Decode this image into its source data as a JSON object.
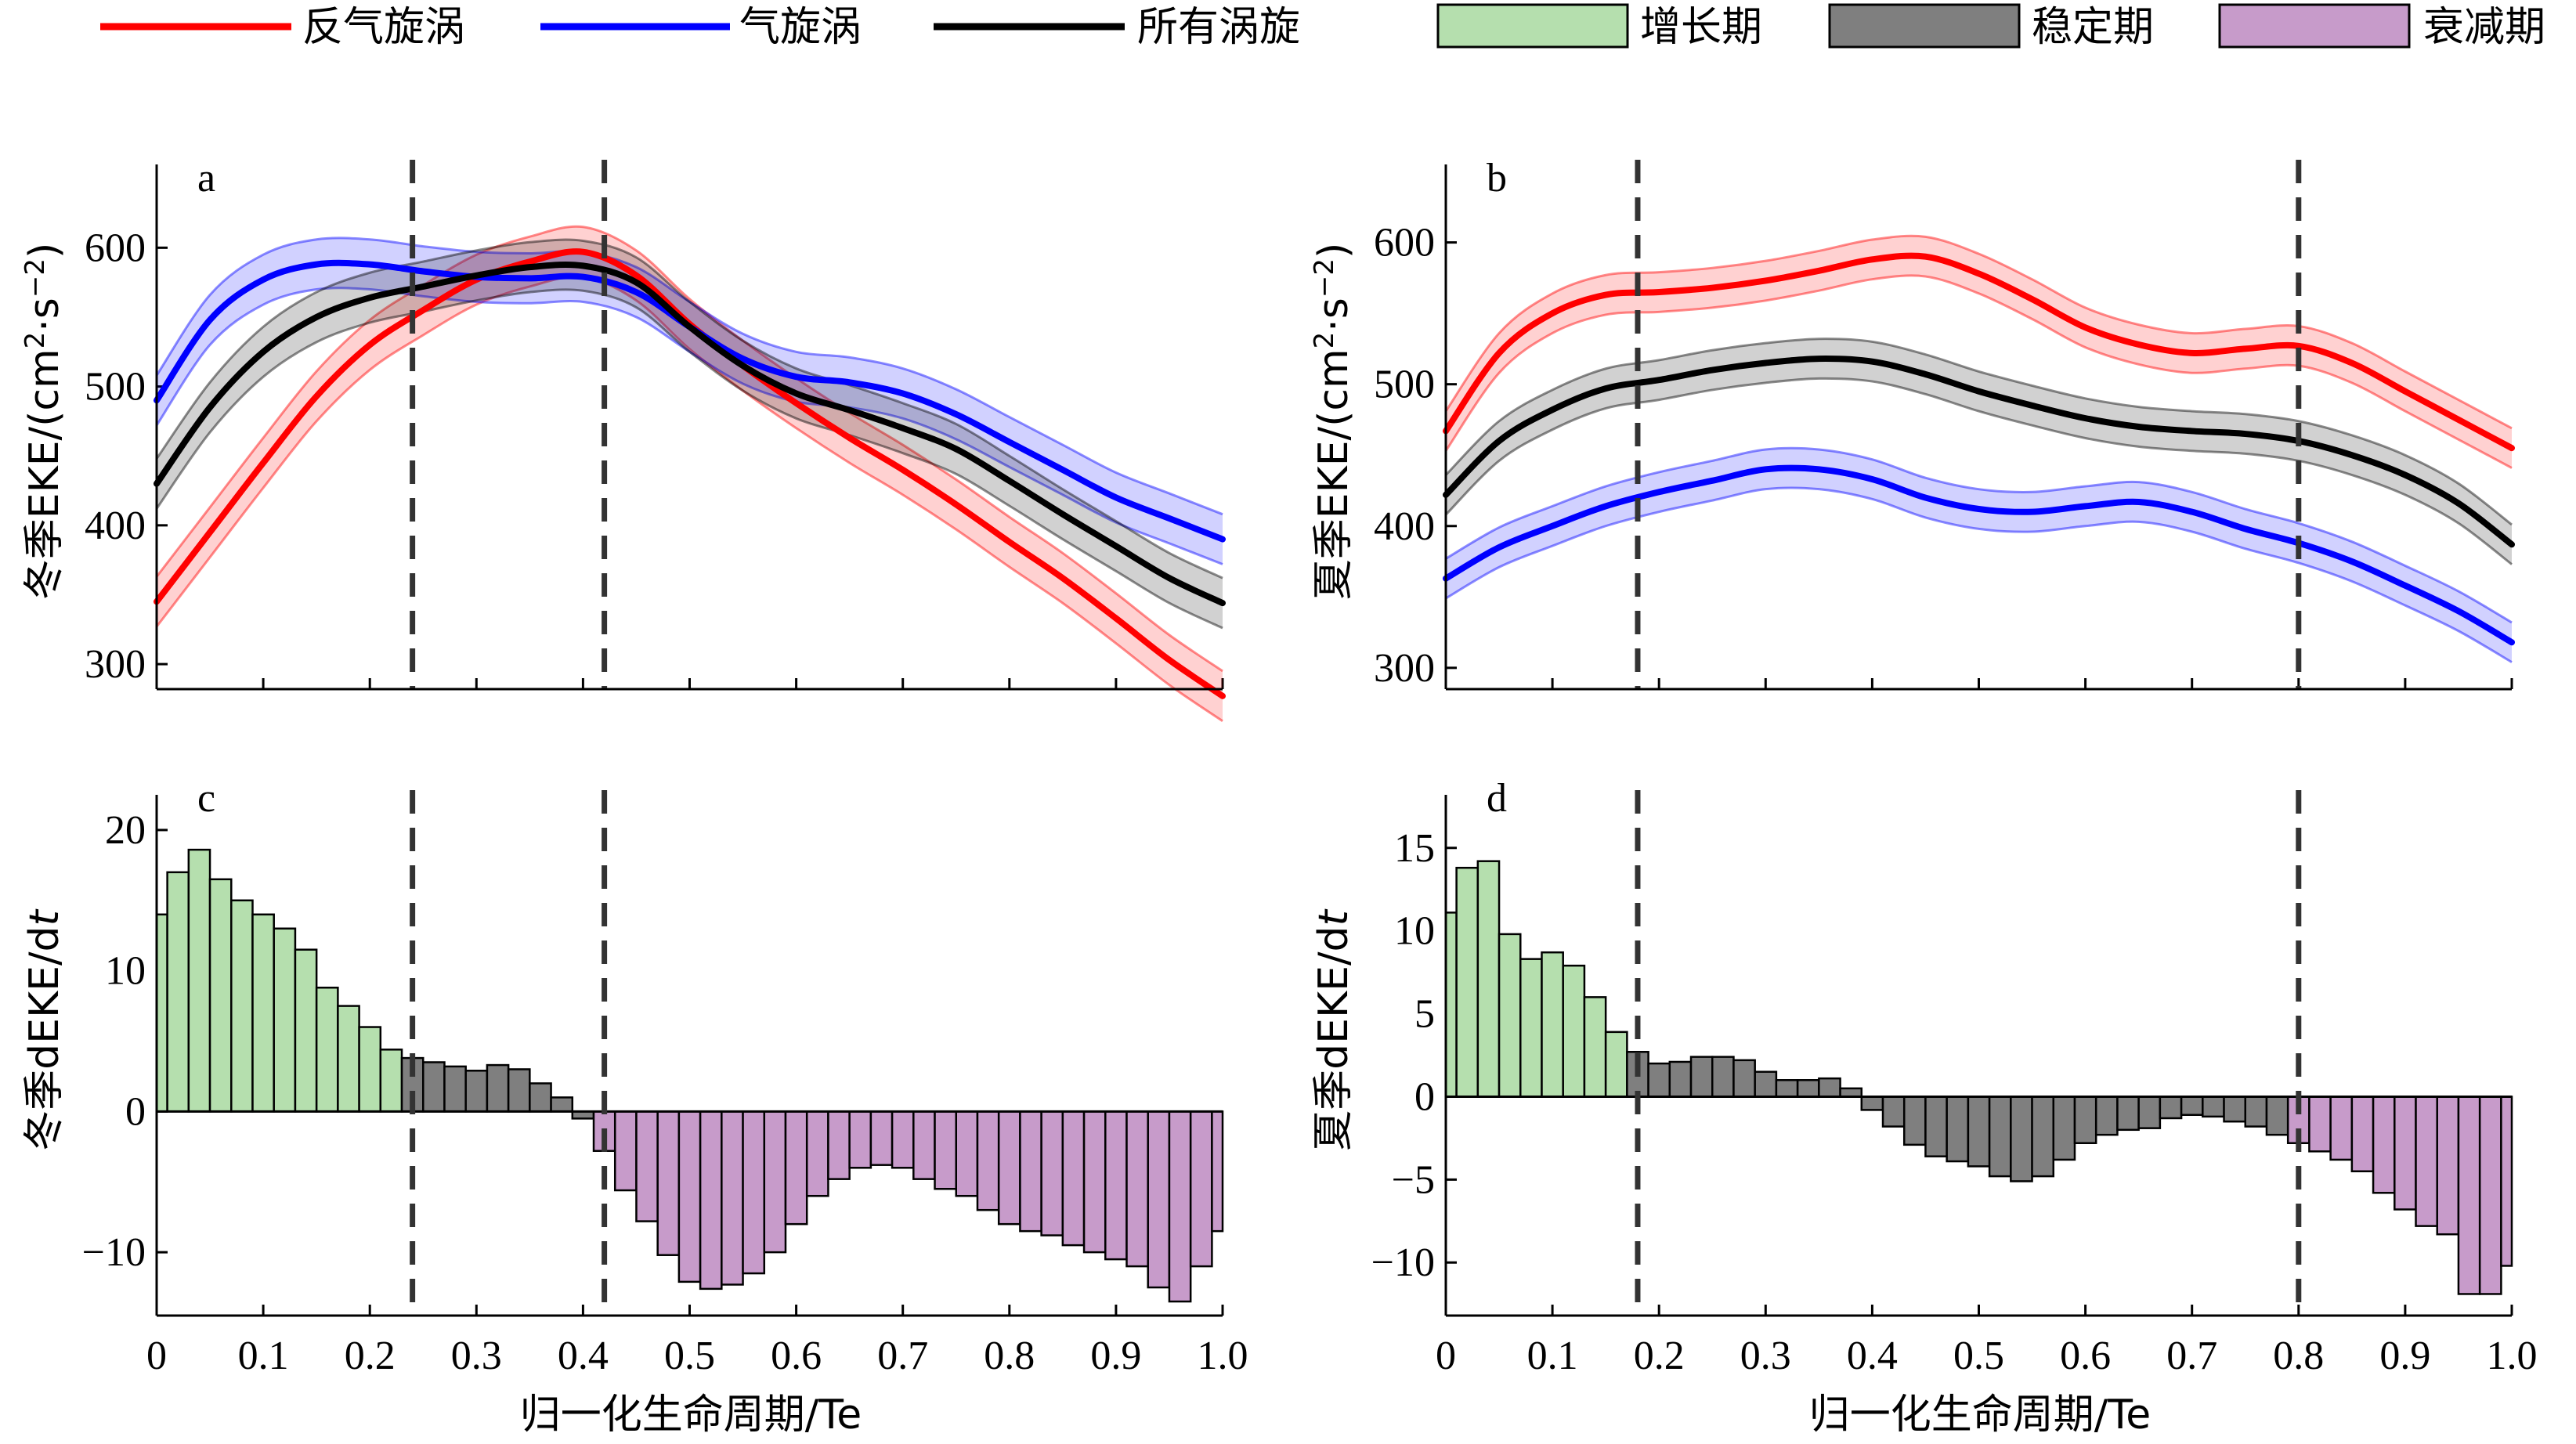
{
  "legend": {
    "lines": [
      {
        "label": "反气旋涡",
        "color": "#ff0000"
      },
      {
        "label": "气旋涡",
        "color": "#0000ff"
      },
      {
        "label": "所有涡旋",
        "color": "#000000"
      }
    ],
    "patches": [
      {
        "label": "增长期",
        "color": "#b5dfae"
      },
      {
        "label": "稳定期",
        "color": "#7f7f7f"
      },
      {
        "label": "衰减期",
        "color": "#c79bca"
      }
    ]
  },
  "chart_data": [
    {
      "id": "a",
      "panel_label": "a",
      "type": "line",
      "ylabel_season": "冬季",
      "ylabel_main": "EKE/(cm",
      "ylabel_sup1": "2",
      "ylabel_mid": "·s",
      "ylabel_sup2": "−2",
      "ylabel_end": ")",
      "xlim": [
        0,
        1
      ],
      "ylim": [
        282,
        660
      ],
      "yticks": [
        300,
        400,
        500,
        600
      ],
      "ytick_labels": [
        "300",
        "400",
        "500",
        "600"
      ],
      "vlines": [
        0.24,
        0.42
      ],
      "band": 18,
      "x": [
        0,
        0.05,
        0.1,
        0.15,
        0.2,
        0.25,
        0.3,
        0.35,
        0.4,
        0.45,
        0.5,
        0.55,
        0.6,
        0.65,
        0.7,
        0.75,
        0.8,
        0.85,
        0.9,
        0.95,
        1.0
      ],
      "series": [
        {
          "name": "反气旋涡",
          "color": "#ff0000",
          "y": [
            345,
            395,
            445,
            493,
            530,
            555,
            577,
            590,
            597,
            580,
            545,
            515,
            488,
            463,
            440,
            415,
            388,
            362,
            333,
            303,
            277
          ]
        },
        {
          "name": "气旋涡",
          "color": "#0000ff",
          "y": [
            490,
            548,
            577,
            588,
            588,
            583,
            579,
            578,
            579,
            568,
            543,
            520,
            507,
            503,
            495,
            480,
            460,
            440,
            420,
            405,
            390
          ]
        },
        {
          "name": "所有涡旋",
          "color": "#000000",
          "y": [
            430,
            485,
            525,
            550,
            564,
            572,
            580,
            586,
            587,
            575,
            543,
            515,
            495,
            483,
            470,
            455,
            432,
            408,
            385,
            362,
            344
          ]
        }
      ]
    },
    {
      "id": "b",
      "panel_label": "b",
      "type": "line",
      "ylabel_season": "夏季",
      "ylabel_main": "EKE/(cm",
      "ylabel_sup1": "2",
      "ylabel_mid": "·s",
      "ylabel_sup2": "−2",
      "ylabel_end": ")",
      "xlim": [
        0,
        1
      ],
      "ylim": [
        285,
        655
      ],
      "yticks": [
        300,
        400,
        500,
        600
      ],
      "ytick_labels": [
        "300",
        "400",
        "500",
        "600"
      ],
      "vlines": [
        0.18,
        0.8
      ],
      "band": 14,
      "x": [
        0,
        0.05,
        0.1,
        0.15,
        0.2,
        0.25,
        0.3,
        0.35,
        0.4,
        0.45,
        0.5,
        0.55,
        0.6,
        0.65,
        0.7,
        0.75,
        0.8,
        0.85,
        0.9,
        0.95,
        1.0
      ],
      "series": [
        {
          "name": "反气旋涡",
          "color": "#ff0000",
          "y": [
            467,
            522,
            550,
            563,
            565,
            568,
            573,
            580,
            588,
            590,
            578,
            560,
            540,
            528,
            522,
            525,
            527,
            515,
            495,
            475,
            455
          ]
        },
        {
          "name": "气旋涡",
          "color": "#0000ff",
          "y": [
            363,
            385,
            400,
            414,
            424,
            432,
            440,
            440,
            433,
            420,
            412,
            410,
            414,
            417,
            410,
            398,
            388,
            375,
            358,
            340,
            318
          ]
        },
        {
          "name": "所有涡旋",
          "color": "#000000",
          "y": [
            422,
            460,
            482,
            497,
            503,
            510,
            515,
            518,
            516,
            507,
            495,
            485,
            476,
            470,
            467,
            465,
            460,
            450,
            436,
            416,
            387
          ]
        }
      ]
    },
    {
      "id": "c",
      "panel_label": "c",
      "type": "bar",
      "ylabel_season": "冬季",
      "ylabel_main": "dEKE/d",
      "ylabel_var": "t",
      "xlim": [
        0,
        1
      ],
      "ylim": [
        -14.5,
        22.5
      ],
      "yticks": [
        -10,
        0,
        10,
        20
      ],
      "ytick_labels": [
        "−10",
        "0",
        "10",
        "20"
      ],
      "xticks": [
        0,
        0.1,
        0.2,
        0.3,
        0.4,
        0.5,
        0.6,
        0.7,
        0.8,
        0.9,
        1.0
      ],
      "xtick_labels": [
        "0",
        "0.1",
        "0.2",
        "0.3",
        "0.4",
        "0.5",
        "0.6",
        "0.7",
        "0.8",
        "0.9",
        "1.0"
      ],
      "xlabel": "归一化生命周期/Te",
      "vlines": [
        0.24,
        0.42
      ],
      "bar_width": 0.02,
      "phase_bounds": [
        0.24,
        0.42
      ],
      "x": [
        0.0,
        0.02,
        0.04,
        0.06,
        0.08,
        0.1,
        0.12,
        0.14,
        0.16,
        0.18,
        0.2,
        0.22,
        0.24,
        0.26,
        0.28,
        0.3,
        0.32,
        0.34,
        0.36,
        0.38,
        0.4,
        0.42,
        0.44,
        0.46,
        0.48,
        0.5,
        0.52,
        0.54,
        0.56,
        0.58,
        0.6,
        0.62,
        0.64,
        0.66,
        0.68,
        0.7,
        0.72,
        0.74,
        0.76,
        0.78,
        0.8,
        0.82,
        0.84,
        0.86,
        0.88,
        0.9,
        0.92,
        0.94,
        0.96,
        0.98,
        1.0
      ],
      "values": [
        14.0,
        17.0,
        18.6,
        16.5,
        15.0,
        14.0,
        13.0,
        11.5,
        8.8,
        7.5,
        6.0,
        4.4,
        3.8,
        3.5,
        3.2,
        2.9,
        3.3,
        3.0,
        2.0,
        1.0,
        -0.5,
        -2.8,
        -5.6,
        -7.8,
        -10.2,
        -12.1,
        -12.6,
        -12.3,
        -11.5,
        -10.0,
        -8.0,
        -6.0,
        -4.8,
        -4.0,
        -3.8,
        -4.0,
        -4.8,
        -5.5,
        -6.0,
        -7.0,
        -8.0,
        -8.5,
        -8.8,
        -9.5,
        -10.0,
        -10.5,
        -11.0,
        -12.5,
        -13.5,
        -11.0,
        -8.5
      ]
    },
    {
      "id": "d",
      "panel_label": "d",
      "type": "bar",
      "ylabel_season": "夏季",
      "ylabel_main": "dEKE/d",
      "ylabel_var": "t",
      "xlim": [
        0,
        1
      ],
      "ylim": [
        -13.2,
        18.2
      ],
      "yticks": [
        -10,
        -5,
        0,
        5,
        10,
        15
      ],
      "ytick_labels": [
        "−10",
        "−5",
        "0",
        "5",
        "10",
        "15"
      ],
      "xticks": [
        0,
        0.1,
        0.2,
        0.3,
        0.4,
        0.5,
        0.6,
        0.7,
        0.8,
        0.9,
        1.0
      ],
      "xtick_labels": [
        "0",
        "0.1",
        "0.2",
        "0.3",
        "0.4",
        "0.5",
        "0.6",
        "0.7",
        "0.8",
        "0.9",
        "1.0"
      ],
      "xlabel": "归一化生命周期/Te",
      "vlines": [
        0.18,
        0.8
      ],
      "bar_width": 0.02,
      "phase_bounds": [
        0.18,
        0.8
      ],
      "x": [
        0.0,
        0.02,
        0.04,
        0.06,
        0.08,
        0.1,
        0.12,
        0.14,
        0.16,
        0.18,
        0.2,
        0.22,
        0.24,
        0.26,
        0.28,
        0.3,
        0.32,
        0.34,
        0.36,
        0.38,
        0.4,
        0.42,
        0.44,
        0.46,
        0.48,
        0.5,
        0.52,
        0.54,
        0.56,
        0.58,
        0.6,
        0.62,
        0.64,
        0.66,
        0.68,
        0.7,
        0.72,
        0.74,
        0.76,
        0.78,
        0.8,
        0.82,
        0.84,
        0.86,
        0.88,
        0.9,
        0.92,
        0.94,
        0.96,
        0.98,
        1.0
      ],
      "values": [
        11.1,
        13.8,
        14.2,
        9.8,
        8.3,
        8.7,
        7.9,
        6.0,
        3.9,
        2.7,
        2.0,
        2.1,
        2.4,
        2.4,
        2.2,
        1.5,
        1.0,
        1.0,
        1.1,
        0.5,
        -0.8,
        -1.8,
        -2.9,
        -3.6,
        -3.9,
        -4.2,
        -4.8,
        -5.1,
        -4.8,
        -3.8,
        -2.8,
        -2.3,
        -2.0,
        -1.9,
        -1.3,
        -1.1,
        -1.2,
        -1.5,
        -1.8,
        -2.3,
        -2.8,
        -3.3,
        -3.8,
        -4.5,
        -5.8,
        -6.8,
        -7.8,
        -8.3,
        -11.9,
        -11.9,
        -10.2
      ]
    }
  ]
}
